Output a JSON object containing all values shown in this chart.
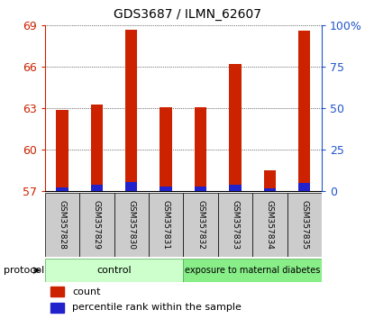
{
  "title": "GDS3687 / ILMN_62607",
  "samples": [
    "GSM357828",
    "GSM357829",
    "GSM357830",
    "GSM357831",
    "GSM357832",
    "GSM357833",
    "GSM357834",
    "GSM357835"
  ],
  "baseline": 57,
  "red_tops": [
    62.9,
    63.3,
    68.7,
    63.1,
    63.1,
    66.2,
    58.5,
    68.6
  ],
  "blue_tops": [
    57.3,
    57.5,
    57.65,
    57.35,
    57.35,
    57.45,
    57.25,
    57.6
  ],
  "ylim_left": [
    57,
    69
  ],
  "yticks_left": [
    57,
    60,
    63,
    66,
    69
  ],
  "ylim_right": [
    0,
    100
  ],
  "yticks_right": [
    0,
    25,
    50,
    75,
    100
  ],
  "ytick_labels_right": [
    "0",
    "25",
    "50",
    "75",
    "100%"
  ],
  "red_color": "#cc2200",
  "blue_color": "#2222cc",
  "bar_width": 0.35,
  "control_label": "control",
  "exposure_label": "exposure to maternal diabetes",
  "control_color": "#ccffcc",
  "exposure_color": "#88ee88",
  "protocol_label": "protocol",
  "legend_items": [
    {
      "color": "#cc2200",
      "label": "count"
    },
    {
      "color": "#2222cc",
      "label": "percentile rank within the sample"
    }
  ],
  "tick_color_left": "#cc2200",
  "tick_color_right": "#2255cc",
  "grid_color": "#000000",
  "label_bg": "#cccccc"
}
